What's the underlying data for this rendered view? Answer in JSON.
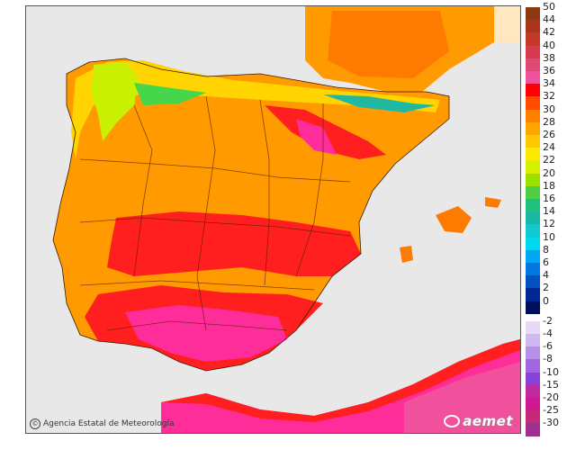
{
  "map": {
    "credit_text": "Agencia Estatal de Meteorología",
    "credit_symbol": "©",
    "brand": "aemet",
    "regions": [
      {
        "name": "atlantic",
        "color": "#e8e8e8"
      },
      {
        "name": "land-base",
        "color": "#ff9a00"
      },
      {
        "name": "land-hot",
        "color": "#ff1f1f"
      },
      {
        "name": "land-hotter",
        "color": "#ff2d9a"
      },
      {
        "name": "land-cool",
        "color": "#ffd400"
      },
      {
        "name": "land-mild",
        "color": "#c8f000"
      },
      {
        "name": "land-green",
        "color": "#46d64b"
      },
      {
        "name": "land-teal",
        "color": "#20b8a0"
      }
    ]
  },
  "legend": {
    "positive": [
      {
        "label": "50",
        "color": "#8b3a0f"
      },
      {
        "label": "44",
        "color": "#a8341a"
      },
      {
        "label": "42",
        "color": "#c0392b"
      },
      {
        "label": "40",
        "color": "#d63a4e"
      },
      {
        "label": "38",
        "color": "#e04878"
      },
      {
        "label": "36",
        "color": "#f0509c"
      },
      {
        "label": "34",
        "color": "#ff0000"
      },
      {
        "label": "32",
        "color": "#ff4a00"
      },
      {
        "label": "30",
        "color": "#ff7f00"
      },
      {
        "label": "28",
        "color": "#ffa500"
      },
      {
        "label": "26",
        "color": "#ffc800"
      },
      {
        "label": "24",
        "color": "#ffe800"
      },
      {
        "label": "22",
        "color": "#d8f000"
      },
      {
        "label": "20",
        "color": "#9ae000"
      },
      {
        "label": "18",
        "color": "#4cd040"
      },
      {
        "label": "16",
        "color": "#20c080"
      },
      {
        "label": "14",
        "color": "#18b8a8"
      },
      {
        "label": "12",
        "color": "#10c8d0"
      },
      {
        "label": "10",
        "color": "#00d8f0"
      },
      {
        "label": "8",
        "color": "#00a8f0"
      },
      {
        "label": "6",
        "color": "#0078e0"
      },
      {
        "label": "4",
        "color": "#0050c0"
      },
      {
        "label": "2",
        "color": "#002890"
      },
      {
        "label": "0",
        "color": "#001060"
      }
    ],
    "negative": [
      {
        "label": "-2",
        "color": "#e8d8f8"
      },
      {
        "label": "-4",
        "color": "#d0b8f0"
      },
      {
        "label": "-6",
        "color": "#b890e8"
      },
      {
        "label": "-8",
        "color": "#a068e0"
      },
      {
        "label": "-10",
        "color": "#8840d8"
      },
      {
        "label": "-15",
        "color": "#c028a0"
      },
      {
        "label": "-20",
        "color": "#d01890"
      },
      {
        "label": "-25",
        "color": "#c82878"
      },
      {
        "label": "-30",
        "color": "#a03090"
      }
    ]
  }
}
